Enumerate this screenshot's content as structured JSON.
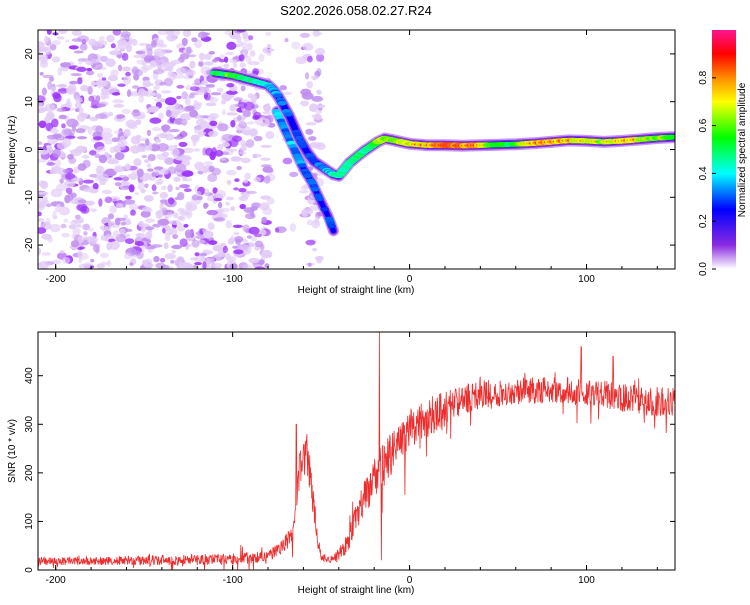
{
  "title": "S202.2026.058.02.27.R24",
  "chart_data": [
    {
      "type": "heatmap",
      "title": "S202.2026.058.02.27.R24",
      "xlabel": "Height of straight line (km)",
      "ylabel": "Frequency (Hz)",
      "xlim": [
        -210,
        150
      ],
      "ylim": [
        -25,
        25
      ],
      "x_ticks": [
        -200,
        -100,
        0,
        100
      ],
      "y_ticks": [
        -20,
        -10,
        0,
        10,
        20
      ],
      "x_tick_labels": [
        "-200",
        "-100",
        "0",
        "100"
      ],
      "y_tick_labels": [
        "-20",
        "-10",
        "0",
        "10",
        "20"
      ],
      "colorbar": {
        "label": "Normalized spectral amplitude",
        "range": [
          0.0,
          1.0
        ],
        "ticks": [
          0.0,
          0.2,
          0.4,
          0.6,
          0.8
        ],
        "tick_labels": [
          "0.0",
          "0.2",
          "0.4",
          "0.6",
          "0.8"
        ],
        "colors": [
          "#ffffff",
          "#8a2be2",
          "#0000ff",
          "#00ffff",
          "#00ff00",
          "#ffff00",
          "#ff8c00",
          "#ff0000",
          "#ff1493"
        ]
      },
      "noise_region_x": [
        -210,
        -50
      ],
      "ridge": {
        "x": [
          -110,
          -100,
          -95,
          -90,
          -85,
          -80,
          -77,
          -74,
          -71,
          -68,
          -65,
          -62,
          -58,
          -54,
          -50,
          -46,
          -43,
          -40,
          -37,
          -34,
          -30,
          -26,
          -22,
          -18,
          -14,
          -10,
          -5,
          0,
          10,
          20,
          30,
          40,
          50,
          60,
          70,
          80,
          90,
          100,
          110,
          120,
          130,
          140,
          150
        ],
        "y": [
          16,
          15.5,
          15,
          14.5,
          14,
          13.5,
          12.5,
          11,
          9,
          7,
          4.5,
          2,
          -0.5,
          -2.5,
          -3.5,
          -4.5,
          -5.2,
          -5.5,
          -4.2,
          -2.8,
          -1.6,
          -0.4,
          0.6,
          1.6,
          2.3,
          2.0,
          1.6,
          1.2,
          0.9,
          0.9,
          0.8,
          0.9,
          1.0,
          1.1,
          1.3,
          1.6,
          1.9,
          1.8,
          1.6,
          1.8,
          2.1,
          2.4,
          2.6
        ],
        "amplitude": [
          0.55,
          0.65,
          0.6,
          0.55,
          0.5,
          0.5,
          0.4,
          0.35,
          0.35,
          0.3,
          0.3,
          0.28,
          0.28,
          0.3,
          0.35,
          0.4,
          0.5,
          0.55,
          0.5,
          0.55,
          0.6,
          0.55,
          0.55,
          0.7,
          0.75,
          0.7,
          0.75,
          0.8,
          0.85,
          0.95,
          0.95,
          0.9,
          0.6,
          0.6,
          0.85,
          0.9,
          0.85,
          0.8,
          0.75,
          0.85,
          0.8,
          0.7,
          0.7
        ]
      },
      "branch": {
        "x": [
          -75,
          -70,
          -65,
          -60,
          -55,
          -50,
          -46,
          -43
        ],
        "y": [
          8,
          4,
          0,
          -4,
          -7,
          -11,
          -14,
          -17
        ],
        "amplitude": [
          0.4,
          0.4,
          0.4,
          0.35,
          0.3,
          0.3,
          0.3,
          0.3
        ]
      }
    },
    {
      "type": "line",
      "xlabel": "Height of straight line (km)",
      "ylabel": "SNR (10 * v/v)",
      "xlim": [
        -210,
        150
      ],
      "ylim": [
        0,
        490
      ],
      "x_ticks": [
        -200,
        -100,
        0,
        100
      ],
      "y_ticks": [
        0,
        100,
        200,
        300,
        400
      ],
      "x_tick_labels": [
        "-200",
        "-100",
        "0",
        "100"
      ],
      "y_tick_labels": [
        "0",
        "100",
        "200",
        "300",
        "400"
      ],
      "color": "#ee2c2c",
      "series": [
        {
          "name": "SNR",
          "envelope_x": [
            -210,
            -150,
            -100,
            -80,
            -66,
            -62,
            -58,
            -55,
            -52,
            -50,
            -45,
            -40,
            -35,
            -30,
            -25,
            -20,
            -15,
            -10,
            -5,
            0,
            10,
            20,
            30,
            40,
            50,
            60,
            70,
            80,
            90,
            100,
            110,
            120,
            130,
            140,
            150
          ],
          "envelope_y": [
            18,
            20,
            22,
            28,
            70,
            200,
            230,
            160,
            60,
            30,
            20,
            30,
            55,
            110,
            150,
            190,
            215,
            240,
            265,
            290,
            310,
            330,
            350,
            360,
            365,
            368,
            370,
            370,
            368,
            365,
            362,
            355,
            350,
            345,
            345
          ],
          "noise_amplitude": [
            8,
            10,
            12,
            12,
            20,
            50,
            50,
            40,
            15,
            10,
            8,
            15,
            20,
            30,
            40,
            45,
            45,
            45,
            40,
            40,
            40,
            40,
            30,
            30,
            28,
            28,
            28,
            28,
            28,
            28,
            28,
            30,
            30,
            30,
            30
          ],
          "spikes": [
            {
              "x": -17,
              "y": 490
            },
            {
              "x": -16,
              "y": 20
            },
            {
              "x": -58,
              "y": 280
            },
            {
              "x": -64,
              "y": 300
            },
            {
              "x": 97,
              "y": 460
            },
            {
              "x": 115,
              "y": 440
            }
          ]
        }
      ]
    }
  ]
}
